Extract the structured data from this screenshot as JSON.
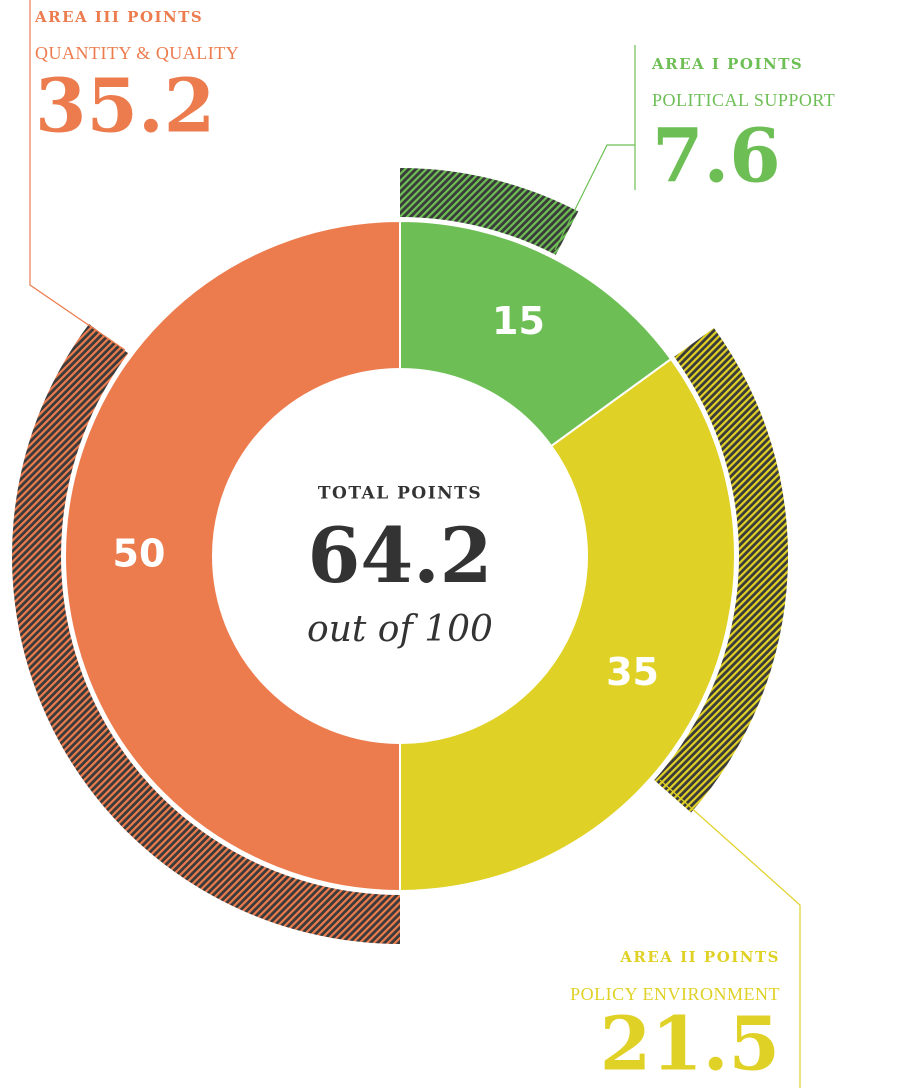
{
  "chart_data": {
    "type": "donut",
    "categories": [
      "AREA I POINTS",
      "AREA II POINTS",
      "AREA III POINTS"
    ],
    "subtitles": [
      "POLITICAL SUPPORT",
      "POLICY ENVIRONMENT",
      "QUANTITY & QUALITY"
    ],
    "values": [
      15,
      35,
      50
    ],
    "scores": [
      7.6,
      21.5,
      35.2
    ],
    "colors": [
      "#6dbf55",
      "#e0d126",
      "#ec7c4e"
    ],
    "center_title": "TOTAL POINTS",
    "center_value": 64.2,
    "center_subtitle": "out of 100"
  }
}
